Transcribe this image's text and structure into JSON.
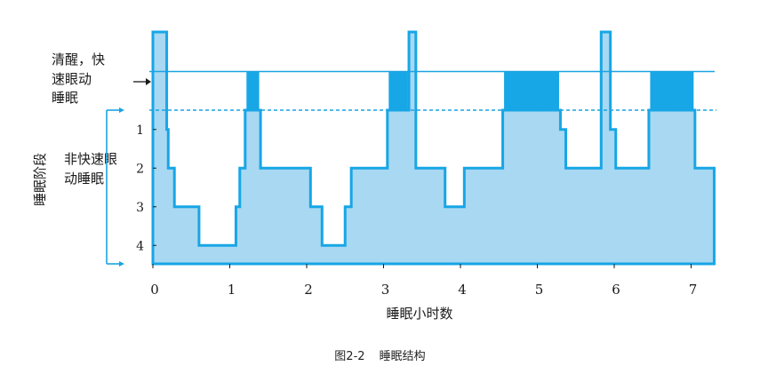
{
  "caption": {
    "figure_no": "图2-2",
    "title": "睡眠结构"
  },
  "colors": {
    "fill": "#a8d8f2",
    "dark": "#17a6e6",
    "line": "#1aa3e3"
  },
  "chart_data": {
    "type": "area",
    "xlabel": "睡眠小时数",
    "xticks": [
      "0",
      "1",
      "2",
      "3",
      "4",
      "5",
      "6",
      "7"
    ],
    "xlim": [
      0,
      7.3
    ],
    "yaxis_title": "睡眠阶段",
    "nrem_label_line1": "非快速眼",
    "nrem_label_line2": "动睡眠",
    "wake_rem_label_line1": "清醒，快",
    "wake_rem_label_line2": "速眼动",
    "wake_rem_label_line3": "睡眠",
    "yticks": [
      "1",
      "2",
      "3",
      "4"
    ],
    "ylim": [
      -0.55,
      5
    ],
    "hypnogram": [
      [
        0,
        0.18,
        -0.5
      ],
      [
        0.18,
        0.2,
        1
      ],
      [
        0.2,
        0.28,
        2
      ],
      [
        0.28,
        0.42,
        3
      ],
      [
        0.42,
        0.6,
        3
      ],
      [
        0.6,
        1.08,
        4
      ],
      [
        1.08,
        1.13,
        3
      ],
      [
        1.13,
        1.2,
        2
      ],
      [
        1.2,
        1.4,
        0.5
      ],
      [
        1.4,
        2.05,
        2
      ],
      [
        2.05,
        2.2,
        3
      ],
      [
        2.2,
        2.5,
        4
      ],
      [
        2.5,
        2.58,
        3
      ],
      [
        2.58,
        2.65,
        2
      ],
      [
        2.65,
        3.05,
        2
      ],
      [
        3.05,
        3.33,
        0.5
      ],
      [
        3.33,
        3.42,
        -0.5
      ],
      [
        3.42,
        3.52,
        2
      ],
      [
        3.52,
        3.8,
        2
      ],
      [
        3.8,
        4.05,
        3
      ],
      [
        4.05,
        4.55,
        2
      ],
      [
        4.55,
        5.3,
        0.5
      ],
      [
        5.3,
        5.37,
        1
      ],
      [
        5.37,
        5.83,
        2
      ],
      [
        5.83,
        5.95,
        -0.5
      ],
      [
        5.95,
        6.02,
        1
      ],
      [
        6.02,
        6.45,
        2
      ],
      [
        6.45,
        7.05,
        0.5
      ],
      [
        7.05,
        7.3,
        2
      ]
    ],
    "rem_periods": [
      [
        1.2,
        1.4
      ],
      [
        3.05,
        3.33
      ],
      [
        4.55,
        5.3
      ],
      [
        6.45,
        7.05
      ]
    ],
    "wake_level": -0.5,
    "rem_level": 0.5,
    "grid": false,
    "legend": "none"
  }
}
